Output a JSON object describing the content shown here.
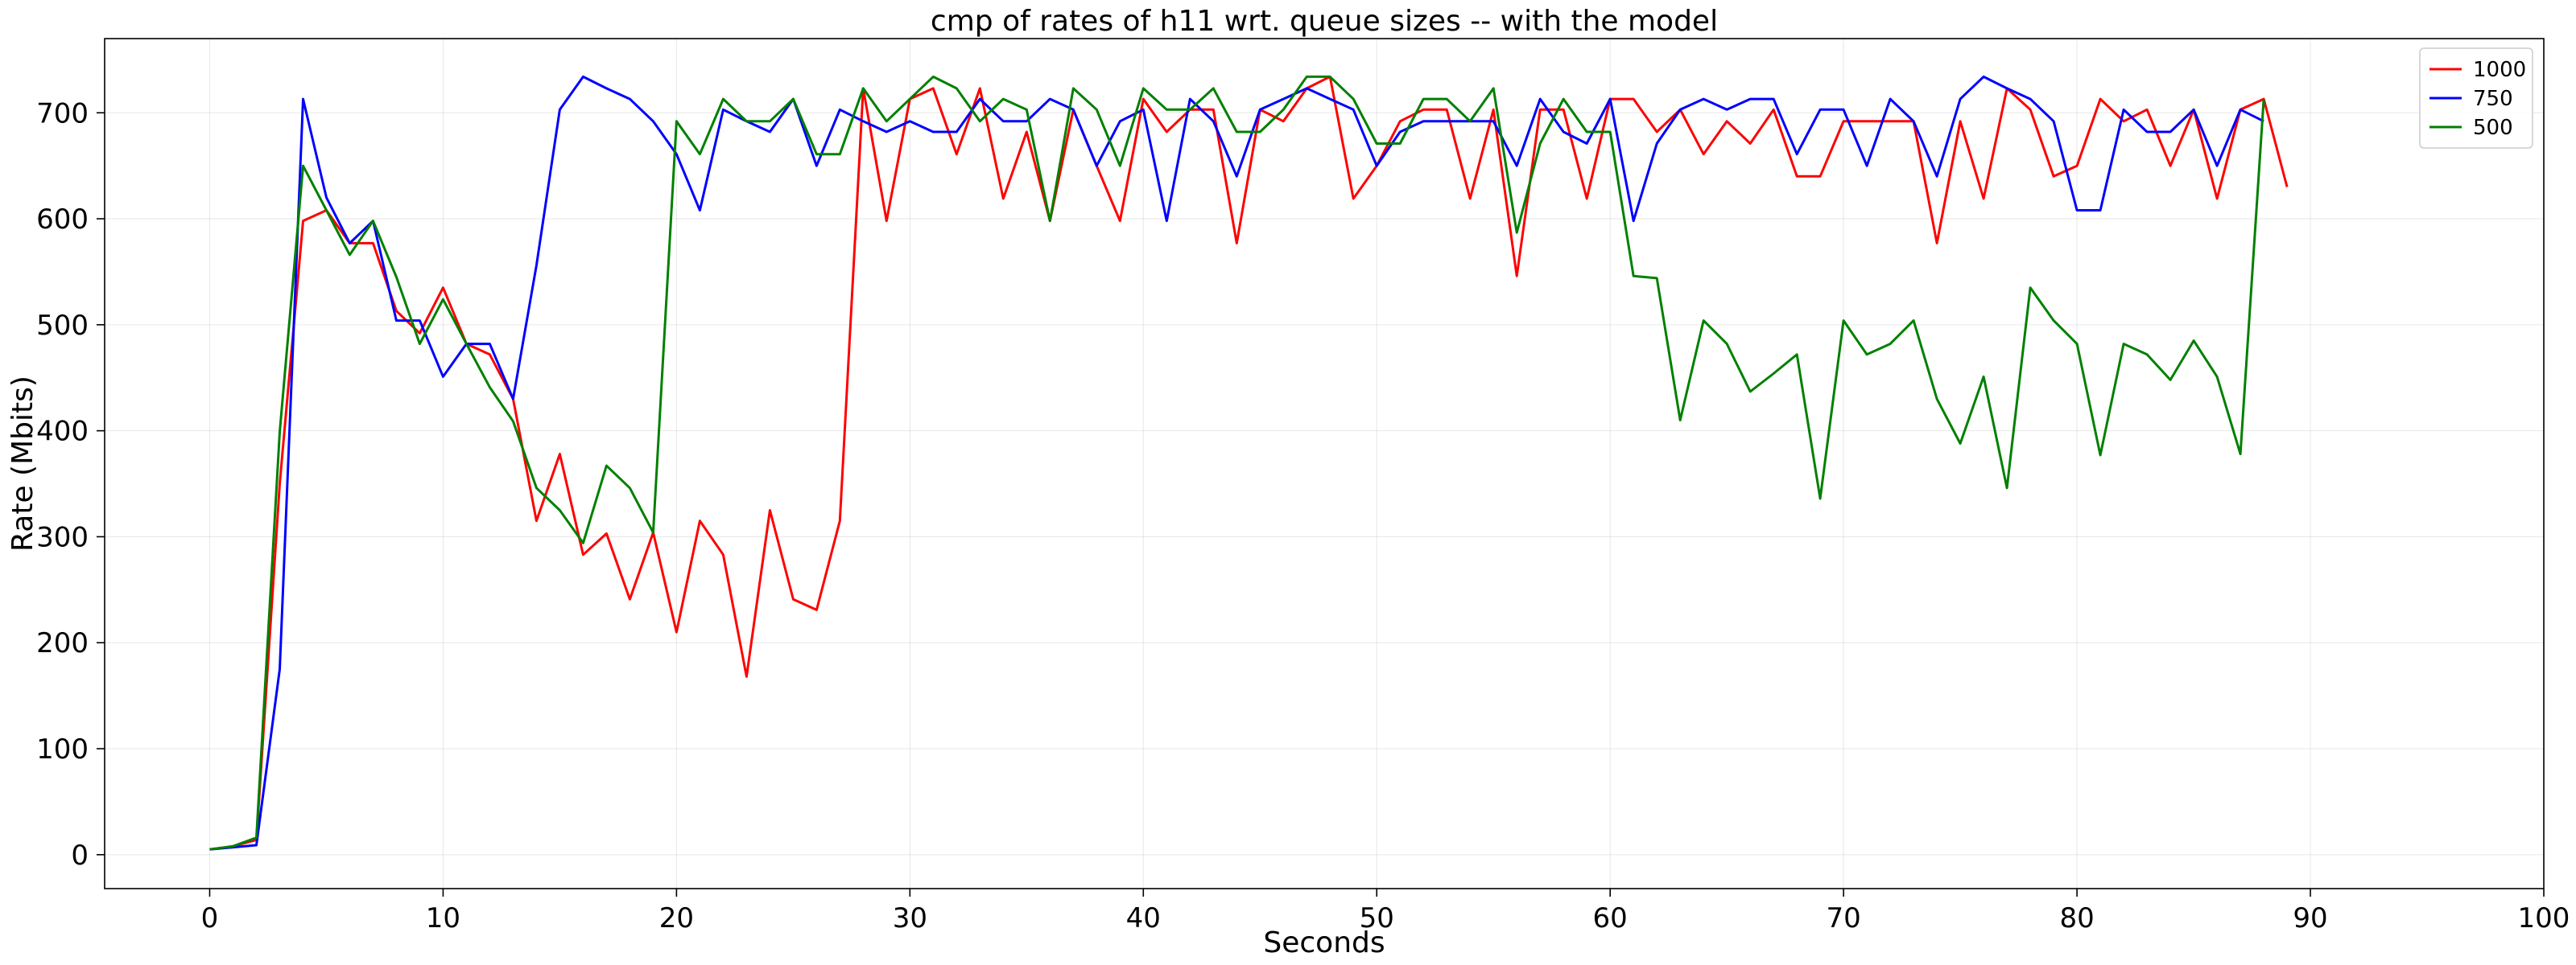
{
  "chart_data": {
    "type": "line",
    "title": "cmp of rates of h11 wrt. queue sizes -- with the model",
    "xlabel": "Seconds",
    "ylabel": "Rate (Mbits)",
    "xlim": [
      -4.5,
      100
    ],
    "ylim": [
      -32,
      770
    ],
    "xticks": [
      0,
      10,
      20,
      30,
      40,
      50,
      60,
      70,
      80,
      90,
      100
    ],
    "yticks": [
      0,
      100,
      200,
      300,
      400,
      500,
      600,
      700
    ],
    "grid": true,
    "legend_position": "top-right",
    "series": [
      {
        "name": "1000",
        "color": "#ff0000",
        "x": [
          0,
          1,
          2,
          3,
          4,
          5,
          6,
          7,
          8,
          9,
          10,
          11,
          12,
          13,
          14,
          15,
          16,
          17,
          18,
          19,
          20,
          21,
          22,
          23,
          24,
          25,
          26,
          27,
          28,
          29,
          30,
          31,
          32,
          33,
          34,
          35,
          36,
          37,
          38,
          39,
          40,
          41,
          42,
          43,
          44,
          45,
          46,
          47,
          48,
          49,
          50,
          51,
          52,
          53,
          54,
          55,
          56,
          57,
          58,
          59,
          60,
          61,
          62,
          63,
          64,
          65,
          66,
          67,
          68,
          69,
          70,
          71,
          72,
          73,
          74,
          75,
          76,
          77,
          78,
          79,
          80,
          81,
          82,
          83,
          84,
          85,
          86,
          87,
          88,
          89
        ],
        "values": [
          5,
          8,
          14,
          350,
          598,
          608,
          577,
          577,
          513,
          492,
          535,
          482,
          472,
          430,
          315,
          378,
          283,
          303,
          241,
          304,
          210,
          315,
          283,
          168,
          325,
          241,
          231,
          315,
          723,
          598,
          713,
          723,
          661,
          723,
          619,
          682,
          598,
          703,
          650,
          598,
          713,
          682,
          703,
          703,
          577,
          703,
          692,
          723,
          734,
          619,
          650,
          692,
          703,
          703,
          619,
          703,
          546,
          703,
          703,
          619,
          713,
          713,
          682,
          703,
          661,
          692,
          671,
          703,
          640,
          640,
          692,
          692,
          692,
          692,
          577,
          692,
          619,
          723,
          703,
          640,
          650,
          713,
          692,
          703,
          650,
          703,
          619,
          703,
          713,
          630
        ]
      },
      {
        "name": "750",
        "color": "#0000ff",
        "x": [
          0,
          1,
          2,
          3,
          4,
          5,
          6,
          7,
          8,
          9,
          10,
          11,
          12,
          13,
          14,
          15,
          16,
          17,
          18,
          19,
          20,
          21,
          22,
          23,
          24,
          25,
          26,
          27,
          28,
          29,
          30,
          31,
          32,
          33,
          34,
          35,
          36,
          37,
          38,
          39,
          40,
          41,
          42,
          43,
          44,
          45,
          46,
          47,
          48,
          49,
          50,
          51,
          52,
          53,
          54,
          55,
          56,
          57,
          58,
          59,
          60,
          61,
          62,
          63,
          64,
          65,
          66,
          67,
          68,
          69,
          70,
          71,
          72,
          73,
          74,
          75,
          76,
          77,
          78,
          79,
          80,
          81,
          82,
          83,
          84,
          85,
          86,
          87,
          88
        ],
        "values": [
          5,
          7,
          9,
          175,
          713,
          620,
          577,
          598,
          504,
          504,
          451,
          482,
          482,
          430,
          556,
          703,
          734,
          723,
          713,
          692,
          661,
          608,
          703,
          692,
          682,
          713,
          650,
          703,
          692,
          682,
          692,
          682,
          682,
          713,
          692,
          692,
          713,
          703,
          650,
          692,
          703,
          598,
          713,
          692,
          640,
          703,
          713,
          723,
          713,
          703,
          650,
          682,
          692,
          692,
          692,
          692,
          650,
          713,
          682,
          671,
          713,
          598,
          671,
          703,
          713,
          703,
          713,
          713,
          661,
          703,
          703,
          650,
          713,
          692,
          640,
          713,
          734,
          723,
          713,
          692,
          608,
          608,
          703,
          682,
          682,
          703,
          650,
          703,
          692
        ]
      },
      {
        "name": "500",
        "color": "#008000",
        "x": [
          0,
          1,
          2,
          3,
          4,
          5,
          6,
          7,
          8,
          9,
          10,
          11,
          12,
          13,
          14,
          15,
          16,
          17,
          18,
          19,
          20,
          21,
          22,
          23,
          24,
          25,
          26,
          27,
          28,
          29,
          30,
          31,
          32,
          33,
          34,
          35,
          36,
          37,
          38,
          39,
          40,
          41,
          42,
          43,
          44,
          45,
          46,
          47,
          48,
          49,
          50,
          51,
          52,
          53,
          54,
          55,
          56,
          57,
          58,
          59,
          60,
          61,
          62,
          63,
          64,
          65,
          66,
          67,
          68,
          69,
          70,
          71,
          72,
          73,
          74,
          75,
          76,
          77,
          78,
          79,
          80,
          81,
          82,
          83,
          84,
          85,
          86,
          87,
          88
        ],
        "values": [
          5,
          8,
          16,
          399,
          650,
          608,
          566,
          598,
          545,
          482,
          524,
          482,
          441,
          409,
          346,
          325,
          294,
          367,
          346,
          304,
          692,
          661,
          713,
          692,
          692,
          713,
          661,
          661,
          723,
          692,
          713,
          734,
          723,
          692,
          713,
          703,
          598,
          723,
          703,
          650,
          723,
          703,
          703,
          723,
          682,
          682,
          703,
          734,
          734,
          713,
          671,
          671,
          713,
          713,
          692,
          723,
          587,
          671,
          713,
          682,
          682,
          546,
          544,
          410,
          504,
          482,
          437,
          454,
          472,
          336,
          504,
          472,
          482,
          504,
          430,
          388,
          451,
          346,
          535,
          504,
          482,
          377,
          482,
          472,
          448,
          485,
          451,
          378,
          713
        ]
      }
    ]
  }
}
